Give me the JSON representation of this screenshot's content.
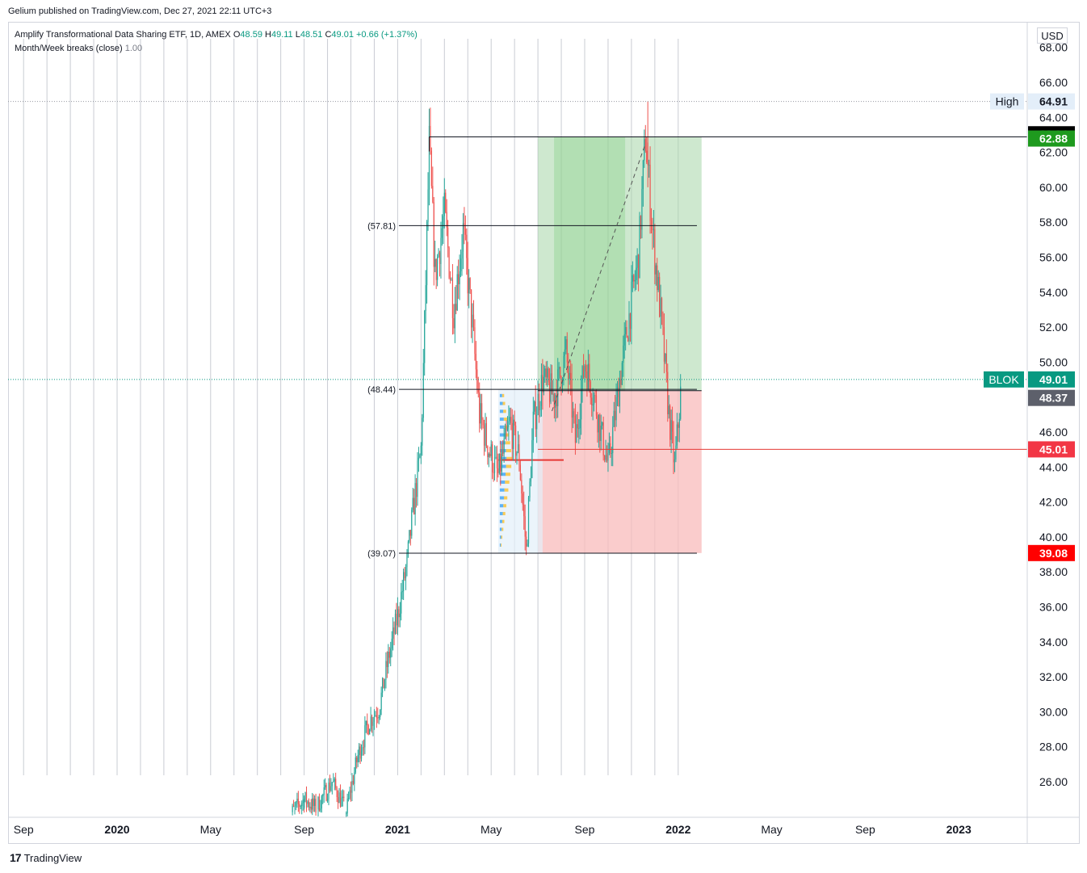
{
  "caption": "Gelium published on TradingView.com, Dec 27, 2021 22:11 UTC+3",
  "legend": {
    "title": "Amplify Transformational Data Sharing ETF, 1D, AMEX",
    "open_label": "O",
    "open": "48.59",
    "high_label": "H",
    "high": "49.11",
    "low_label": "L",
    "low": "48.51",
    "close_label": "C",
    "close": "49.01",
    "change": "+0.66 (+1.37%)",
    "indicator": "Month/Week breaks (close)",
    "indicator_value": "1.00"
  },
  "currency": "USD",
  "footer": {
    "logo_mark": "17",
    "brand": "TradingView"
  },
  "colors": {
    "up": "#26a69a",
    "down": "#ef5350",
    "profit_zone": "#a5d6a7",
    "loss_zone": "#f8bbbb",
    "ticker_tag": "#089981",
    "stop_tag": "#ff0000",
    "entry_tag": "#5d606b",
    "target_tag": "#1e9a1e"
  },
  "chart_data": {
    "type": "candlestick",
    "symbol": "BLOK",
    "ylim": [
      24.0,
      68.5
    ],
    "y_ticks": [
      26,
      28,
      30,
      32,
      34,
      36,
      38,
      40,
      42,
      44,
      46,
      48,
      50,
      52,
      54,
      56,
      58,
      60,
      62,
      64,
      66,
      68
    ],
    "y_tick_labels": [
      "26.00",
      "28.00",
      "30.00",
      "32.00",
      "34.00",
      "36.00",
      "38.00",
      "40.00",
      "42.00",
      "44.00",
      "46.00",
      "48.00",
      "50.00",
      "52.00",
      "54.00",
      "56.00",
      "58.00",
      "60.00",
      "62.00",
      "64.00",
      "66.00",
      "68.00"
    ],
    "x_labels": [
      {
        "text": "Sep",
        "month": -4,
        "bold": false
      },
      {
        "text": "2020",
        "month": 0,
        "bold": true
      },
      {
        "text": "May",
        "month": 4,
        "bold": false
      },
      {
        "text": "Sep",
        "month": 8,
        "bold": false
      },
      {
        "text": "2021",
        "month": 12,
        "bold": true
      },
      {
        "text": "May",
        "month": 16,
        "bold": false
      },
      {
        "text": "Sep",
        "month": 20,
        "bold": false
      },
      {
        "text": "2022",
        "month": 24,
        "bold": true
      },
      {
        "text": "May",
        "month": 28,
        "bold": false
      },
      {
        "text": "Sep",
        "month": 32,
        "bold": false
      },
      {
        "text": "2023",
        "month": 36,
        "bold": true
      }
    ],
    "month_breaks": true,
    "price_path": [
      [
        7.3,
        24.0
      ],
      [
        8.0,
        25.0
      ],
      [
        8.5,
        24.5
      ],
      [
        9.2,
        26.0
      ],
      [
        9.8,
        24.3
      ],
      [
        10.3,
        27.5
      ],
      [
        10.8,
        29.5
      ],
      [
        11.2,
        30.2
      ],
      [
        11.6,
        33.0
      ],
      [
        12.0,
        35.5
      ],
      [
        12.4,
        38.5
      ],
      [
        12.7,
        42.0
      ],
      [
        13.0,
        45.0
      ],
      [
        13.15,
        52.0
      ],
      [
        13.35,
        62.5
      ],
      [
        13.6,
        55.0
      ],
      [
        14.0,
        58.5
      ],
      [
        14.4,
        53.0
      ],
      [
        14.8,
        57.5
      ],
      [
        15.2,
        52.0
      ],
      [
        15.5,
        47.0
      ],
      [
        15.9,
        45.0
      ],
      [
        16.3,
        43.5
      ],
      [
        16.8,
        46.5
      ],
      [
        17.2,
        44.5
      ],
      [
        17.5,
        39.2
      ],
      [
        17.8,
        46.5
      ],
      [
        18.2,
        49.0
      ],
      [
        18.7,
        48.0
      ],
      [
        19.2,
        50.5
      ],
      [
        19.6,
        45.5
      ],
      [
        20.0,
        50.0
      ],
      [
        20.4,
        48.0
      ],
      [
        21.0,
        44.0
      ],
      [
        21.5,
        49.0
      ],
      [
        22.0,
        53.5
      ],
      [
        22.3,
        56.0
      ],
      [
        22.6,
        62.9
      ],
      [
        22.9,
        57.5
      ],
      [
        23.3,
        52.0
      ],
      [
        23.6,
        47.0
      ],
      [
        23.85,
        44.0
      ],
      [
        24.0,
        46.5
      ],
      [
        24.15,
        49.01
      ]
    ],
    "seed": 7,
    "session_high": {
      "label": "High",
      "value": "64.91"
    },
    "last_price": {
      "label": "BLOK",
      "value": "49.01"
    },
    "high_marker": "62.94",
    "fib_levels": [
      {
        "label": "(57.81)",
        "value": 57.81
      },
      {
        "label": "(48.44)",
        "value": 48.44
      },
      {
        "label": "(39.07)",
        "value": 39.07
      }
    ],
    "range_top": 62.88,
    "position": {
      "target": "62.88",
      "entry": "48.37",
      "stop": "39.08",
      "start_month": 18.0,
      "end_month": 25.0
    },
    "horizontal_line": "45.01",
    "volume_profile": {
      "poc": 44.4,
      "low": 39.07,
      "high": 48.44,
      "start_month": 16.3,
      "end_month": 18.2
    }
  }
}
